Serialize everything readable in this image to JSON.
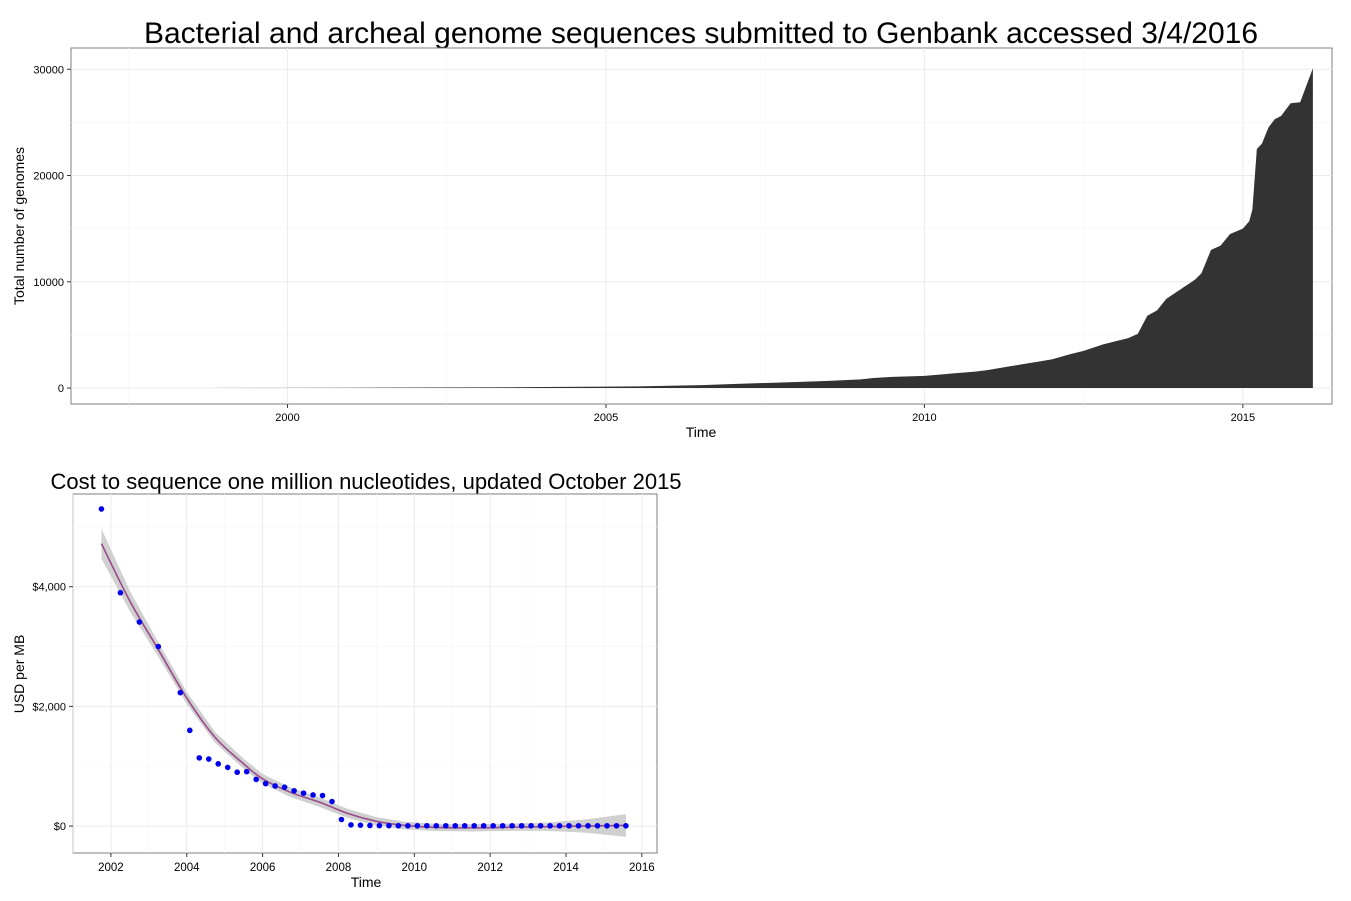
{
  "chart_data": [
    {
      "type": "area",
      "title": "Bacterial and archeal genome sequences submitted to Genbank accessed 3/4/2016",
      "xlabel": "Time",
      "ylabel": "Total number of genomes",
      "xlim": [
        1996.6,
        2016.4
      ],
      "ylim": [
        -1500,
        32000
      ],
      "x_ticks": [
        2000,
        2005,
        2010,
        2015
      ],
      "x_tick_labels": [
        "2000",
        "2005",
        "2010",
        "2015"
      ],
      "y_ticks": [
        0,
        10000,
        20000,
        30000
      ],
      "y_tick_labels": [
        "0",
        "10000",
        "20000",
        "30000"
      ],
      "grid": true,
      "fill_color": "#333333",
      "series": [
        {
          "x": [
            1998.7,
            2000.0,
            2001.0,
            2002.0,
            2003.0,
            2004.0,
            2005.0,
            2005.5,
            2006.0,
            2006.5,
            2007.0,
            2007.5,
            2008.0,
            2008.5,
            2009.0,
            2009.2,
            2009.5,
            2010.0,
            2010.3,
            2010.5,
            2010.8,
            2011.0,
            2011.3,
            2011.5,
            2011.8,
            2012.0,
            2012.3,
            2012.5,
            2012.8,
            2013.0,
            2013.2,
            2013.35,
            2013.5,
            2013.65,
            2013.8,
            2013.95,
            2014.1,
            2014.25,
            2014.35,
            2014.5,
            2014.65,
            2014.8,
            2015.0,
            2015.1,
            2015.15,
            2015.22,
            2015.3,
            2015.4,
            2015.5,
            2015.6,
            2015.65,
            2015.75,
            2015.9,
            2016.0,
            2016.1
          ],
          "values": [
            5,
            20,
            35,
            50,
            70,
            95,
            130,
            160,
            220,
            280,
            380,
            480,
            570,
            680,
            820,
            950,
            1050,
            1150,
            1300,
            1400,
            1550,
            1700,
            2000,
            2200,
            2500,
            2700,
            3200,
            3500,
            4100,
            4400,
            4700,
            5100,
            6800,
            7300,
            8400,
            9000,
            9600,
            10200,
            10800,
            13000,
            13400,
            14500,
            15000,
            15700,
            16800,
            22500,
            23000,
            24500,
            25300,
            25600,
            26000,
            26800,
            26900,
            28500,
            30100
          ]
        }
      ]
    },
    {
      "type": "scatter",
      "title": "Cost to sequence one million nucleotides, updated October 2015",
      "xlabel": "Time",
      "ylabel": "USD per MB",
      "xlim": [
        2001.0,
        2016.4
      ],
      "ylim": [
        -450,
        5550
      ],
      "x_ticks": [
        2002,
        2004,
        2006,
        2008,
        2010,
        2012,
        2014,
        2016
      ],
      "x_tick_labels": [
        "2002",
        "2004",
        "2006",
        "2008",
        "2010",
        "2012",
        "2014",
        "2016"
      ],
      "y_ticks": [
        0,
        2000,
        4000
      ],
      "y_tick_labels": [
        "$0",
        "$2,000",
        "$4,000"
      ],
      "grid": true,
      "point_color": "#0000ee",
      "smooth_color": "#9a4a8a",
      "ribbon_color": "#c8c8c8",
      "points": {
        "x": [
          2001.75,
          2002.25,
          2002.75,
          2003.25,
          2003.83,
          2004.08,
          2004.33,
          2004.58,
          2004.83,
          2005.08,
          2005.33,
          2005.58,
          2005.83,
          2006.08,
          2006.33,
          2006.58,
          2006.83,
          2007.08,
          2007.33,
          2007.58,
          2007.83,
          2008.08,
          2008.33,
          2008.58,
          2008.83,
          2009.08,
          2009.33,
          2009.58,
          2009.83,
          2010.08,
          2010.33,
          2010.58,
          2010.83,
          2011.08,
          2011.33,
          2011.58,
          2011.83,
          2012.08,
          2012.33,
          2012.58,
          2012.83,
          2013.08,
          2013.33,
          2013.58,
          2013.83,
          2014.08,
          2014.33,
          2014.58,
          2014.83,
          2015.08,
          2015.33,
          2015.58
        ],
        "values": [
          5300,
          3900,
          3410,
          3000,
          2230,
          1600,
          1140,
          1120,
          1040,
          980,
          900,
          910,
          780,
          710,
          670,
          650,
          590,
          550,
          520,
          510,
          410,
          110,
          20,
          15,
          10,
          8,
          7,
          6,
          5,
          5,
          5,
          5,
          5,
          5,
          5,
          5,
          5,
          5,
          5,
          5,
          5,
          5,
          5,
          5,
          5,
          5,
          5,
          5,
          5,
          5,
          5,
          5
        ]
      },
      "smooth": {
        "x": [
          2001.75,
          2002.5,
          2003.25,
          2004.0,
          2004.75,
          2005.5,
          2006.0,
          2006.75,
          2007.5,
          2008.25,
          2009.0,
          2009.75,
          2010.5,
          2011.5,
          2012.5,
          2013.5,
          2014.5,
          2015.58
        ],
        "values": [
          4720,
          3760,
          2950,
          2140,
          1480,
          1040,
          790,
          560,
          400,
          210,
          80,
          10,
          -20,
          -30,
          -20,
          -10,
          0,
          10
        ],
        "band": [
          250,
          170,
          120,
          100,
          90,
          85,
          80,
          80,
          80,
          75,
          70,
          65,
          60,
          60,
          60,
          70,
          110,
          190
        ]
      }
    }
  ]
}
